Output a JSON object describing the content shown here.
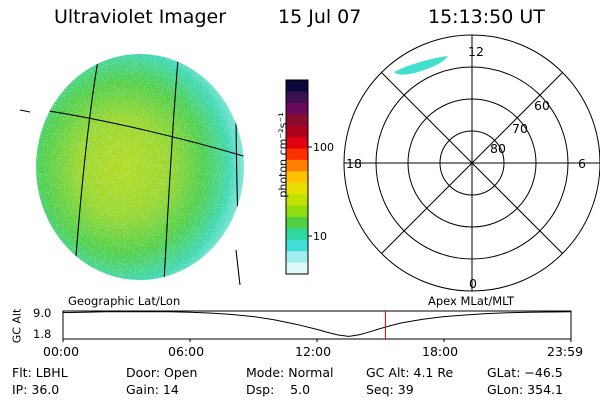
{
  "header": {
    "title": "Ultraviolet Imager",
    "date": "15 Jul 07",
    "time": "15:13:50 UT"
  },
  "panels": {
    "left_label": "Geographic Lat/Lon",
    "right_label": "Apex MLat/MLT"
  },
  "colorbar": {
    "unit_label": "photon cm⁻²s⁻¹",
    "ticks": [
      "100",
      "10"
    ],
    "colors": [
      "#0a0a3a",
      "#3a1050",
      "#6a0a5a",
      "#8a0a30",
      "#b00020",
      "#e00010",
      "#ff3000",
      "#ff8000",
      "#ffc000",
      "#e8e000",
      "#c0e000",
      "#90dc10",
      "#50d040",
      "#30d8a0",
      "#40e0d8",
      "#a0eef0",
      "#e0f8f8"
    ]
  },
  "polar": {
    "mlt_labels": [
      "12",
      "18",
      "6",
      "0"
    ],
    "lat_labels": [
      "60",
      "70",
      "80"
    ]
  },
  "chart_data": {
    "type": "line",
    "title": "",
    "xlabel": "",
    "ylabel": "GC Alt",
    "x_ticks": [
      "00:00",
      "06:00",
      "12:00",
      "18:00",
      "23:59"
    ],
    "y_ticks": [
      "9.0",
      "1.8"
    ],
    "xlim": [
      0,
      24
    ],
    "ylim": [
      1.0,
      9.5
    ],
    "series": [
      {
        "x": [
          0,
          1,
          2,
          3,
          4,
          5,
          6,
          7,
          8,
          9,
          10,
          11,
          12,
          12.5,
          13,
          13.5,
          14,
          14.5,
          15,
          15.5,
          16,
          17,
          18,
          19,
          20,
          21,
          22,
          23,
          24
        ],
        "y": [
          9.0,
          9.15,
          9.25,
          9.3,
          9.3,
          9.25,
          9.1,
          8.85,
          8.45,
          7.8,
          6.8,
          5.5,
          3.9,
          3.0,
          2.2,
          1.8,
          2.3,
          3.2,
          4.2,
          5.1,
          5.9,
          7.0,
          7.8,
          8.3,
          8.7,
          8.95,
          9.1,
          9.2,
          9.25
        ]
      }
    ],
    "current_time": 15.23
  },
  "info": {
    "filter": "Flt: LBHL",
    "ip": "IP: 36.0",
    "door": "Door: Open",
    "gain": "Gain: 14",
    "mode": "Mode: Normal",
    "dsp": "Dsp:    5.0",
    "gc_alt": "GC Alt: 4.1 Re",
    "seq": "Seq: 39",
    "glat": "GLat: −46.5",
    "glon": "GLon: 354.1"
  },
  "colors": {
    "frame": "#000000",
    "time_marker": "#cc0000",
    "aurora": "#40e0d0"
  }
}
